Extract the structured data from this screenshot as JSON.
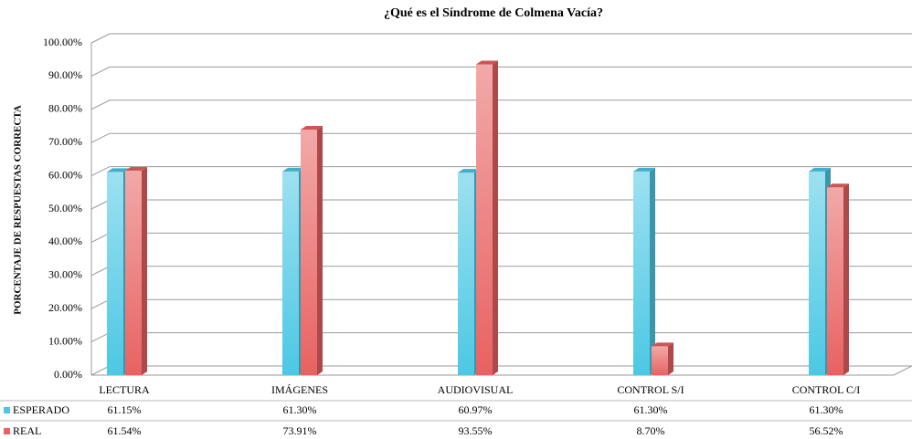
{
  "chart_data": {
    "type": "bar3d",
    "title": "¿Qué es el Síndrome de Colmena Vacía?",
    "y_label": "PORCENTAJE DE RESPUESTAS CORRECTA",
    "categories": [
      "LECTURA",
      "IMÁGENES",
      "AUDIOVISUAL",
      "CONTROL S/I",
      "CONTROL C/I"
    ],
    "series": [
      {
        "name": "ESPERADO",
        "color": "#4cc8e4",
        "values": [
          61.15,
          61.3,
          60.97,
          61.3,
          61.3
        ],
        "value_labels": [
          "61.15%",
          "61.30%",
          "60.97%",
          "61.30%",
          "61.30%"
        ]
      },
      {
        "name": "REAL",
        "color": "#e86262",
        "values": [
          61.54,
          73.91,
          93.55,
          8.7,
          56.52
        ],
        "value_labels": [
          "61.54%",
          "73.91%",
          "93.55%",
          "8.70%",
          "56.52%"
        ]
      }
    ],
    "ylim": [
      0,
      100
    ],
    "yticks": [
      {
        "value": 0,
        "label": "0.00%"
      },
      {
        "value": 10,
        "label": "10.00%"
      },
      {
        "value": 20,
        "label": "20.00%"
      },
      {
        "value": 30,
        "label": "30.00%"
      },
      {
        "value": 40,
        "label": "40.00%"
      },
      {
        "value": 50,
        "label": "50.00%"
      },
      {
        "value": 60,
        "label": "60.00%"
      },
      {
        "value": 70,
        "label": "70.00%"
      },
      {
        "value": 80,
        "label": "80.00%"
      },
      {
        "value": 90,
        "label": "90.00%"
      },
      {
        "value": 100,
        "label": "100.00%"
      }
    ],
    "grid": true
  }
}
